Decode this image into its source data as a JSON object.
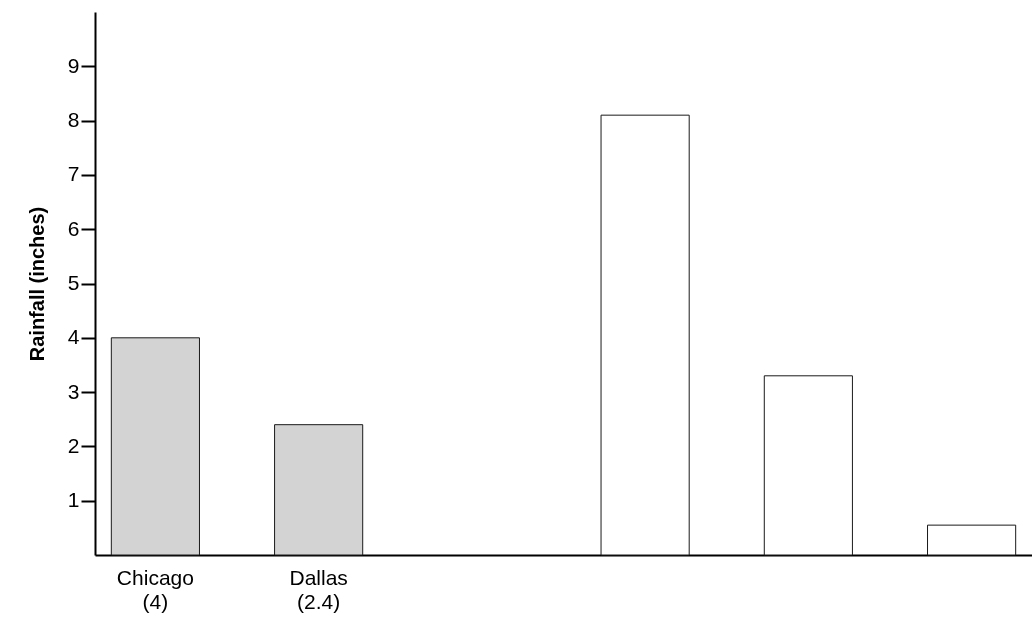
{
  "chart_data": {
    "type": "bar",
    "ylabel": "Rainfall (inches)",
    "categories": [
      "Chicago (4)",
      "Dallas (2.4)",
      null,
      null,
      null,
      null
    ],
    "values": [
      4,
      2.4,
      null,
      8.1,
      3.3,
      0.55
    ],
    "colors": [
      "#d3d3d3",
      "#d3d3d3",
      null,
      "#ffffff",
      "#ffffff",
      "#ffffff"
    ],
    "ylim": [
      0,
      10
    ],
    "yticks": [
      1,
      2,
      3,
      4,
      5,
      6,
      7,
      8,
      9
    ],
    "grid": false
  }
}
